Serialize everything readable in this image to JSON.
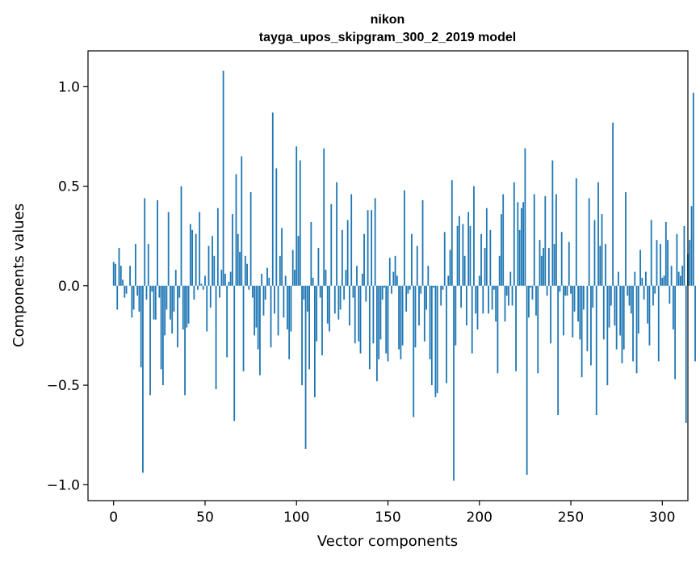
{
  "chart_data": {
    "type": "bar",
    "title": "nikon",
    "subtitle": "tayga_upos_skipgram_300_2_2019 model",
    "xlabel": "Vector components",
    "ylabel": "Components values",
    "xlim": [
      -14,
      314
    ],
    "ylim": [
      -1.08,
      1.18
    ],
    "xticks": [
      0,
      50,
      100,
      150,
      200,
      250,
      300
    ],
    "xtick_labels": [
      "0",
      "50",
      "100",
      "150",
      "200",
      "250",
      "300"
    ],
    "yticks": [
      -1.0,
      -0.5,
      0.0,
      0.5,
      1.0
    ],
    "ytick_labels": [
      "−1.0",
      "−0.5",
      "0.0",
      "0.5",
      "1.0"
    ],
    "bar_color": "#1f77b4",
    "values": [
      0.12,
      0.11,
      -0.12,
      0.19,
      0.1,
      0.03,
      -0.06,
      -0.04,
      0.0,
      0.1,
      -0.16,
      -0.12,
      0.21,
      -0.05,
      -0.13,
      -0.41,
      -0.94,
      0.44,
      -0.07,
      0.21,
      -0.55,
      -0.03,
      -0.17,
      -0.17,
      0.43,
      -0.06,
      -0.42,
      -0.5,
      -0.25,
      -0.12,
      0.37,
      -0.17,
      -0.24,
      -0.13,
      0.08,
      -0.31,
      -0.06,
      0.5,
      -0.22,
      -0.55,
      -0.21,
      -0.19,
      0.31,
      0.28,
      -0.07,
      0.26,
      -0.02,
      0.37,
      0.01,
      -0.02,
      0.05,
      -0.23,
      0.2,
      -0.11,
      0.25,
      0.15,
      -0.52,
      0.39,
      -0.06,
      0.08,
      1.08,
      0.06,
      -0.36,
      0.02,
      0.07,
      0.36,
      -0.68,
      0.56,
      0.26,
      0.17,
      0.65,
      -0.43,
      0.15,
      0.11,
      -0.02,
      0.47,
      -0.06,
      -0.25,
      -0.21,
      -0.32,
      -0.45,
      0.06,
      -0.15,
      -0.07,
      0.09,
      0.04,
      -0.31,
      0.87,
      -0.14,
      0.59,
      -0.25,
      0.15,
      0.29,
      -0.16,
      0.05,
      -0.22,
      -0.37,
      -0.23,
      0.18,
      0.08,
      0.7,
      0.25,
      0.63,
      -0.5,
      -0.07,
      -0.82,
      -0.13,
      -0.42,
      0.32,
      0.04,
      -0.56,
      -0.28,
      0.19,
      -0.06,
      -0.35,
      0.69,
      0.08,
      -0.19,
      -0.23,
      0.41,
      0.0,
      -0.14,
      0.52,
      -0.17,
      -0.12,
      0.28,
      -0.07,
      0.08,
      0.33,
      -0.2,
      0.46,
      -0.06,
      -0.29,
      0.1,
      -0.28,
      -0.34,
      0.06,
      0.26,
      -0.08,
      0.38,
      -0.42,
      0.38,
      -0.29,
      0.44,
      -0.48,
      -0.37,
      -0.27,
      -0.07,
      -0.01,
      -0.34,
      -0.38,
      0.14,
      -0.04,
      0.07,
      0.15,
      0.05,
      -0.32,
      -0.37,
      -0.3,
      0.48,
      -0.13,
      -0.04,
      -0.02,
      0.26,
      -0.66,
      -0.31,
      0.2,
      -0.2,
      -0.04,
      0.43,
      -0.28,
      -0.12,
      0.1,
      -0.37,
      -0.5,
      -0.01,
      -0.56,
      -0.54,
      0.0,
      -0.1,
      -0.02,
      0.27,
      -0.49,
      0.05,
      0.18,
      0.53,
      -0.98,
      -0.3,
      0.3,
      0.35,
      -0.11,
      0.31,
      0.15,
      -0.2,
      0.37,
      0.3,
      -0.34,
      0.5,
      -0.14,
      -0.22,
      0.05,
      0.26,
      -0.14,
      0.19,
      0.39,
      -0.14,
      0.28,
      -0.12,
      -0.02,
      -0.18,
      -0.44,
      0.15,
      0.36,
      0.46,
      -0.18,
      -0.05,
      -0.1,
      0.07,
      -0.1,
      0.52,
      -0.43,
      0.42,
      0.28,
      0.39,
      0.42,
      0.69,
      -0.95,
      -0.16,
      -0.01,
      -0.07,
      0.46,
      -0.15,
      -0.44,
      0.23,
      0.15,
      0.19,
      0.45,
      -0.05,
      0.19,
      -0.29,
      0.63,
      0.21,
      0.46,
      -0.65,
      -0.03,
      0.27,
      -0.25,
      -0.05,
      -0.05,
      0.22,
      -0.04,
      -0.26,
      -0.13,
      0.54,
      -0.18,
      -0.27,
      -0.46,
      -0.12,
      0.0,
      -0.33,
      0.44,
      -0.4,
      -0.11,
      0.33,
      -0.65,
      0.52,
      0.2,
      0.36,
      -0.27,
      0.21,
      -0.5,
      -0.21,
      -0.1,
      0.82,
      -0.2,
      -0.32,
      0.07,
      -0.25,
      -0.39,
      -0.32,
      0.47,
      -0.05,
      -0.1,
      -0.14,
      -0.38,
      0.07,
      -0.44,
      -0.24,
      0.18,
      0.04,
      -0.07,
      0.07,
      -0.19,
      -0.3,
      0.33,
      -0.1,
      -0.04,
      0.23,
      -0.38,
      0.21,
      0.04,
      0.05,
      0.32,
      0.23,
      -0.09,
      0.1,
      -0.22,
      -0.47,
      0.26,
      0.07,
      0.05,
      0.1,
      0.3,
      -0.69,
      0.16,
      0.23,
      0.4,
      0.97,
      -0.38
    ]
  }
}
